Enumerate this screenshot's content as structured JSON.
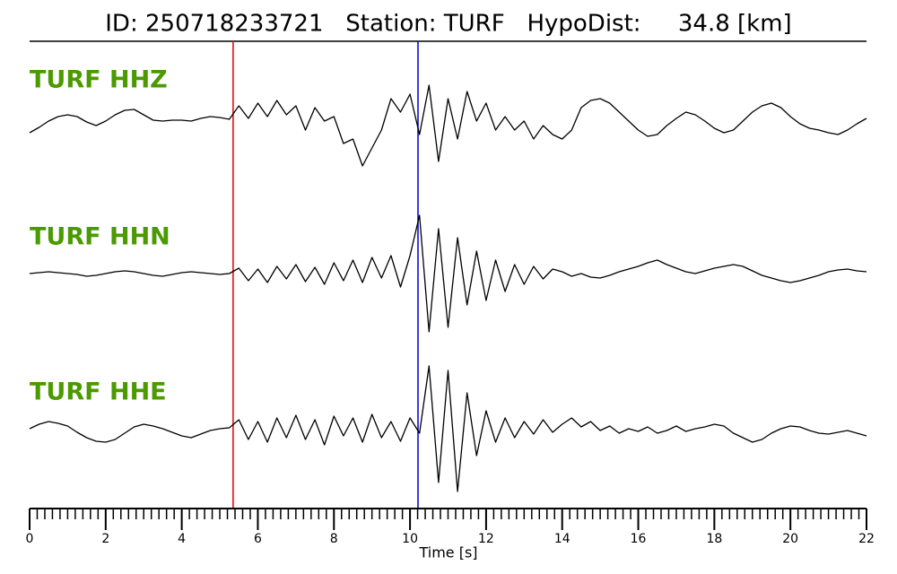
{
  "chart_data": {
    "type": "line",
    "title": "ID: 250718233721   Station: TURF   HypoDist:     34.8 [km]",
    "xlabel": "Time [s]",
    "xlim": [
      0,
      22
    ],
    "xticks": [
      0,
      2,
      4,
      6,
      8,
      10,
      12,
      14,
      16,
      18,
      20,
      22
    ],
    "minor_xticks": [
      0,
      0.2,
      0.4,
      0.6,
      0.8,
      1,
      1.2,
      1.4,
      1.6,
      1.8,
      2,
      2.2,
      2.4,
      2.6,
      2.8,
      3,
      3.2,
      3.4,
      3.6,
      3.8,
      4,
      4.2,
      4.4,
      4.6,
      4.8,
      5,
      5.2,
      5.4,
      5.6,
      5.8,
      6,
      6.2,
      6.4,
      6.6,
      6.8,
      7,
      7.2,
      7.4,
      7.6,
      7.8,
      8,
      8.2,
      8.4,
      8.6,
      8.8,
      9,
      9.2,
      9.4,
      9.6,
      9.8,
      10,
      10.2,
      10.4,
      10.6,
      10.8,
      11,
      11.2,
      11.4,
      11.6,
      11.8,
      12,
      12.2,
      12.4,
      12.6,
      12.8,
      13,
      13.2,
      13.4,
      13.6,
      13.8,
      14,
      14.2,
      14.4,
      14.6,
      14.8,
      15,
      15.2,
      15.4,
      15.6,
      15.8,
      16,
      16.2,
      16.4,
      16.6,
      16.8,
      17,
      17.2,
      17.4,
      17.6,
      17.8,
      18,
      18.2,
      18.4,
      18.6,
      18.8,
      19,
      19.2,
      19.4,
      19.6,
      19.8,
      20,
      20.2,
      20.4,
      20.6,
      20.8,
      21,
      21.2,
      21.4,
      21.6,
      21.8,
      22
    ],
    "label_color": "#4a9a00",
    "picks": [
      {
        "time": 5.35,
        "color": "#e00000"
      },
      {
        "time": 10.21,
        "color": "#0000cc"
      }
    ],
    "x": [
      0,
      0.25,
      0.5,
      0.75,
      1,
      1.25,
      1.5,
      1.75,
      2,
      2.25,
      2.5,
      2.75,
      3,
      3.25,
      3.5,
      3.75,
      4,
      4.25,
      4.5,
      4.75,
      5,
      5.25,
      5.5,
      5.75,
      6,
      6.25,
      6.5,
      6.75,
      7,
      7.25,
      7.5,
      7.75,
      8,
      8.25,
      8.5,
      8.75,
      9,
      9.25,
      9.5,
      9.75,
      10,
      10.25,
      10.5,
      10.75,
      11,
      11.25,
      11.5,
      11.75,
      12,
      12.25,
      12.5,
      12.75,
      13,
      13.25,
      13.5,
      13.75,
      14,
      14.25,
      14.5,
      14.75,
      15,
      15.25,
      15.5,
      15.75,
      16,
      16.25,
      16.5,
      16.75,
      17,
      17.25,
      17.5,
      17.75,
      18,
      18.25,
      18.5,
      18.75,
      19,
      19.25,
      19.5,
      19.75,
      20,
      20.25,
      20.5,
      20.75,
      21,
      21.25,
      21.5,
      21.75,
      22
    ],
    "series": [
      {
        "name": "TURF HHZ",
        "color": "#000000",
        "values": [
          -8,
          -2,
          5,
          10,
          12,
          10,
          4,
          0,
          5,
          12,
          17,
          18,
          12,
          6,
          5,
          6,
          6,
          5,
          8,
          10,
          9,
          7,
          22,
          8,
          25,
          10,
          28,
          12,
          22,
          -5,
          20,
          5,
          10,
          -20,
          -15,
          -45,
          -25,
          -5,
          30,
          15,
          35,
          -10,
          45,
          -40,
          30,
          -15,
          38,
          5,
          25,
          -5,
          10,
          -5,
          5,
          -15,
          0,
          -10,
          -15,
          -5,
          20,
          28,
          30,
          25,
          15,
          5,
          -5,
          -12,
          -10,
          0,
          8,
          15,
          12,
          5,
          -3,
          -8,
          -5,
          5,
          15,
          22,
          25,
          20,
          10,
          2,
          -3,
          -5,
          -8,
          -10,
          -5,
          2,
          8
        ]
      },
      {
        "name": "TURF HHN",
        "color": "#000000",
        "values": [
          0,
          1,
          2,
          1,
          0,
          -1,
          -3,
          -2,
          0,
          2,
          3,
          2,
          0,
          -2,
          -3,
          -1,
          1,
          2,
          1,
          0,
          -1,
          0,
          6,
          -8,
          5,
          -10,
          8,
          -6,
          10,
          -9,
          7,
          -12,
          12,
          -8,
          15,
          -10,
          18,
          -5,
          20,
          -15,
          20,
          65,
          -65,
          50,
          -60,
          40,
          -35,
          25,
          -30,
          15,
          -20,
          10,
          -12,
          8,
          -6,
          5,
          2,
          -3,
          0,
          -4,
          -5,
          -2,
          2,
          5,
          8,
          12,
          15,
          10,
          6,
          2,
          0,
          3,
          6,
          8,
          10,
          8,
          3,
          -2,
          -5,
          -8,
          -10,
          -8,
          -5,
          -2,
          2,
          4,
          5,
          3,
          2
        ]
      },
      {
        "name": "TURF HHE",
        "color": "#000000",
        "values": [
          0,
          5,
          8,
          6,
          3,
          -4,
          -10,
          -14,
          -15,
          -12,
          -5,
          2,
          5,
          3,
          0,
          -4,
          -8,
          -10,
          -6,
          -2,
          0,
          1,
          10,
          -12,
          8,
          -15,
          12,
          -10,
          15,
          -12,
          10,
          -18,
          14,
          -8,
          12,
          -15,
          16,
          -10,
          8,
          -14,
          12,
          -5,
          70,
          -60,
          65,
          -70,
          40,
          -30,
          20,
          -15,
          12,
          -10,
          8,
          -6,
          10,
          -4,
          5,
          12,
          2,
          8,
          -2,
          3,
          -5,
          0,
          -3,
          2,
          -5,
          -2,
          3,
          -3,
          0,
          2,
          5,
          3,
          -5,
          -10,
          -15,
          -12,
          -5,
          0,
          3,
          2,
          -2,
          -5,
          -6,
          -4,
          -2,
          -5,
          -8
        ]
      }
    ]
  }
}
